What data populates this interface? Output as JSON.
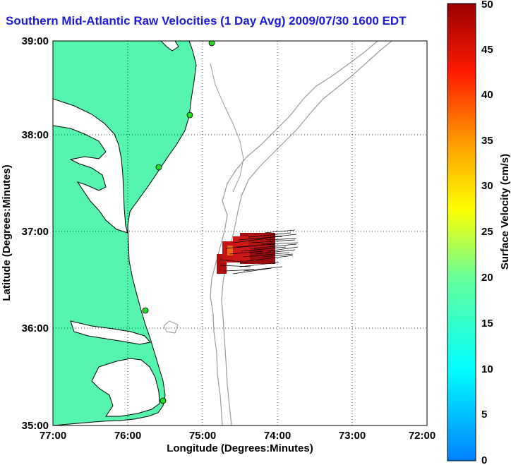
{
  "title": "Southern Mid-Atlantic Raw Velocities (1 Day Avg) 2009/07/30 1600 EDT",
  "map": {
    "xlabel": "Longitude (Degrees:Minutes)",
    "ylabel": "Latitude (Degrees:Minutes)",
    "xlim": [
      -77,
      -72
    ],
    "ylim": [
      35,
      39
    ],
    "x_ticks": [
      {
        "value": -77,
        "label": "77:00"
      },
      {
        "value": -76,
        "label": "76:00"
      },
      {
        "value": -75,
        "label": "75:00"
      },
      {
        "value": -74,
        "label": "74:00"
      },
      {
        "value": -73,
        "label": "73:00"
      },
      {
        "value": -72,
        "label": "72:00"
      }
    ],
    "y_ticks": [
      {
        "value": 35,
        "label": "35:00"
      },
      {
        "value": 36,
        "label": "36:00"
      },
      {
        "value": 37,
        "label": "37:00"
      },
      {
        "value": 38,
        "label": "38:00"
      },
      {
        "value": 39,
        "label": "39:00"
      }
    ],
    "grid": true,
    "land_color": "#55f5ad",
    "ocean_color": "#ffffff",
    "bathymetry_color": "#999999",
    "coastline_color": "#000000",
    "station_color": "#22dd22",
    "stations": [
      {
        "lon": -75.12,
        "lat": 38.96
      },
      {
        "lon": -75.11,
        "lat": 38.22
      },
      {
        "lon": -75.52,
        "lat": 37.67
      },
      {
        "lon": -75.72,
        "lat": 36.18
      },
      {
        "lon": -75.47,
        "lat": 35.25
      }
    ]
  },
  "colorbar": {
    "label": "Surface Velocity (cm/s)",
    "min": 0,
    "max": 50,
    "ticks": [
      {
        "value": 0,
        "label": "0"
      },
      {
        "value": 5,
        "label": "5"
      },
      {
        "value": 10,
        "label": "10"
      },
      {
        "value": 15,
        "label": "15"
      },
      {
        "value": 20,
        "label": "20"
      },
      {
        "value": 25,
        "label": "25"
      },
      {
        "value": 30,
        "label": "30"
      },
      {
        "value": 35,
        "label": "35"
      },
      {
        "value": 40,
        "label": "40"
      },
      {
        "value": 45,
        "label": "45"
      },
      {
        "value": 50,
        "label": "50"
      }
    ]
  }
}
